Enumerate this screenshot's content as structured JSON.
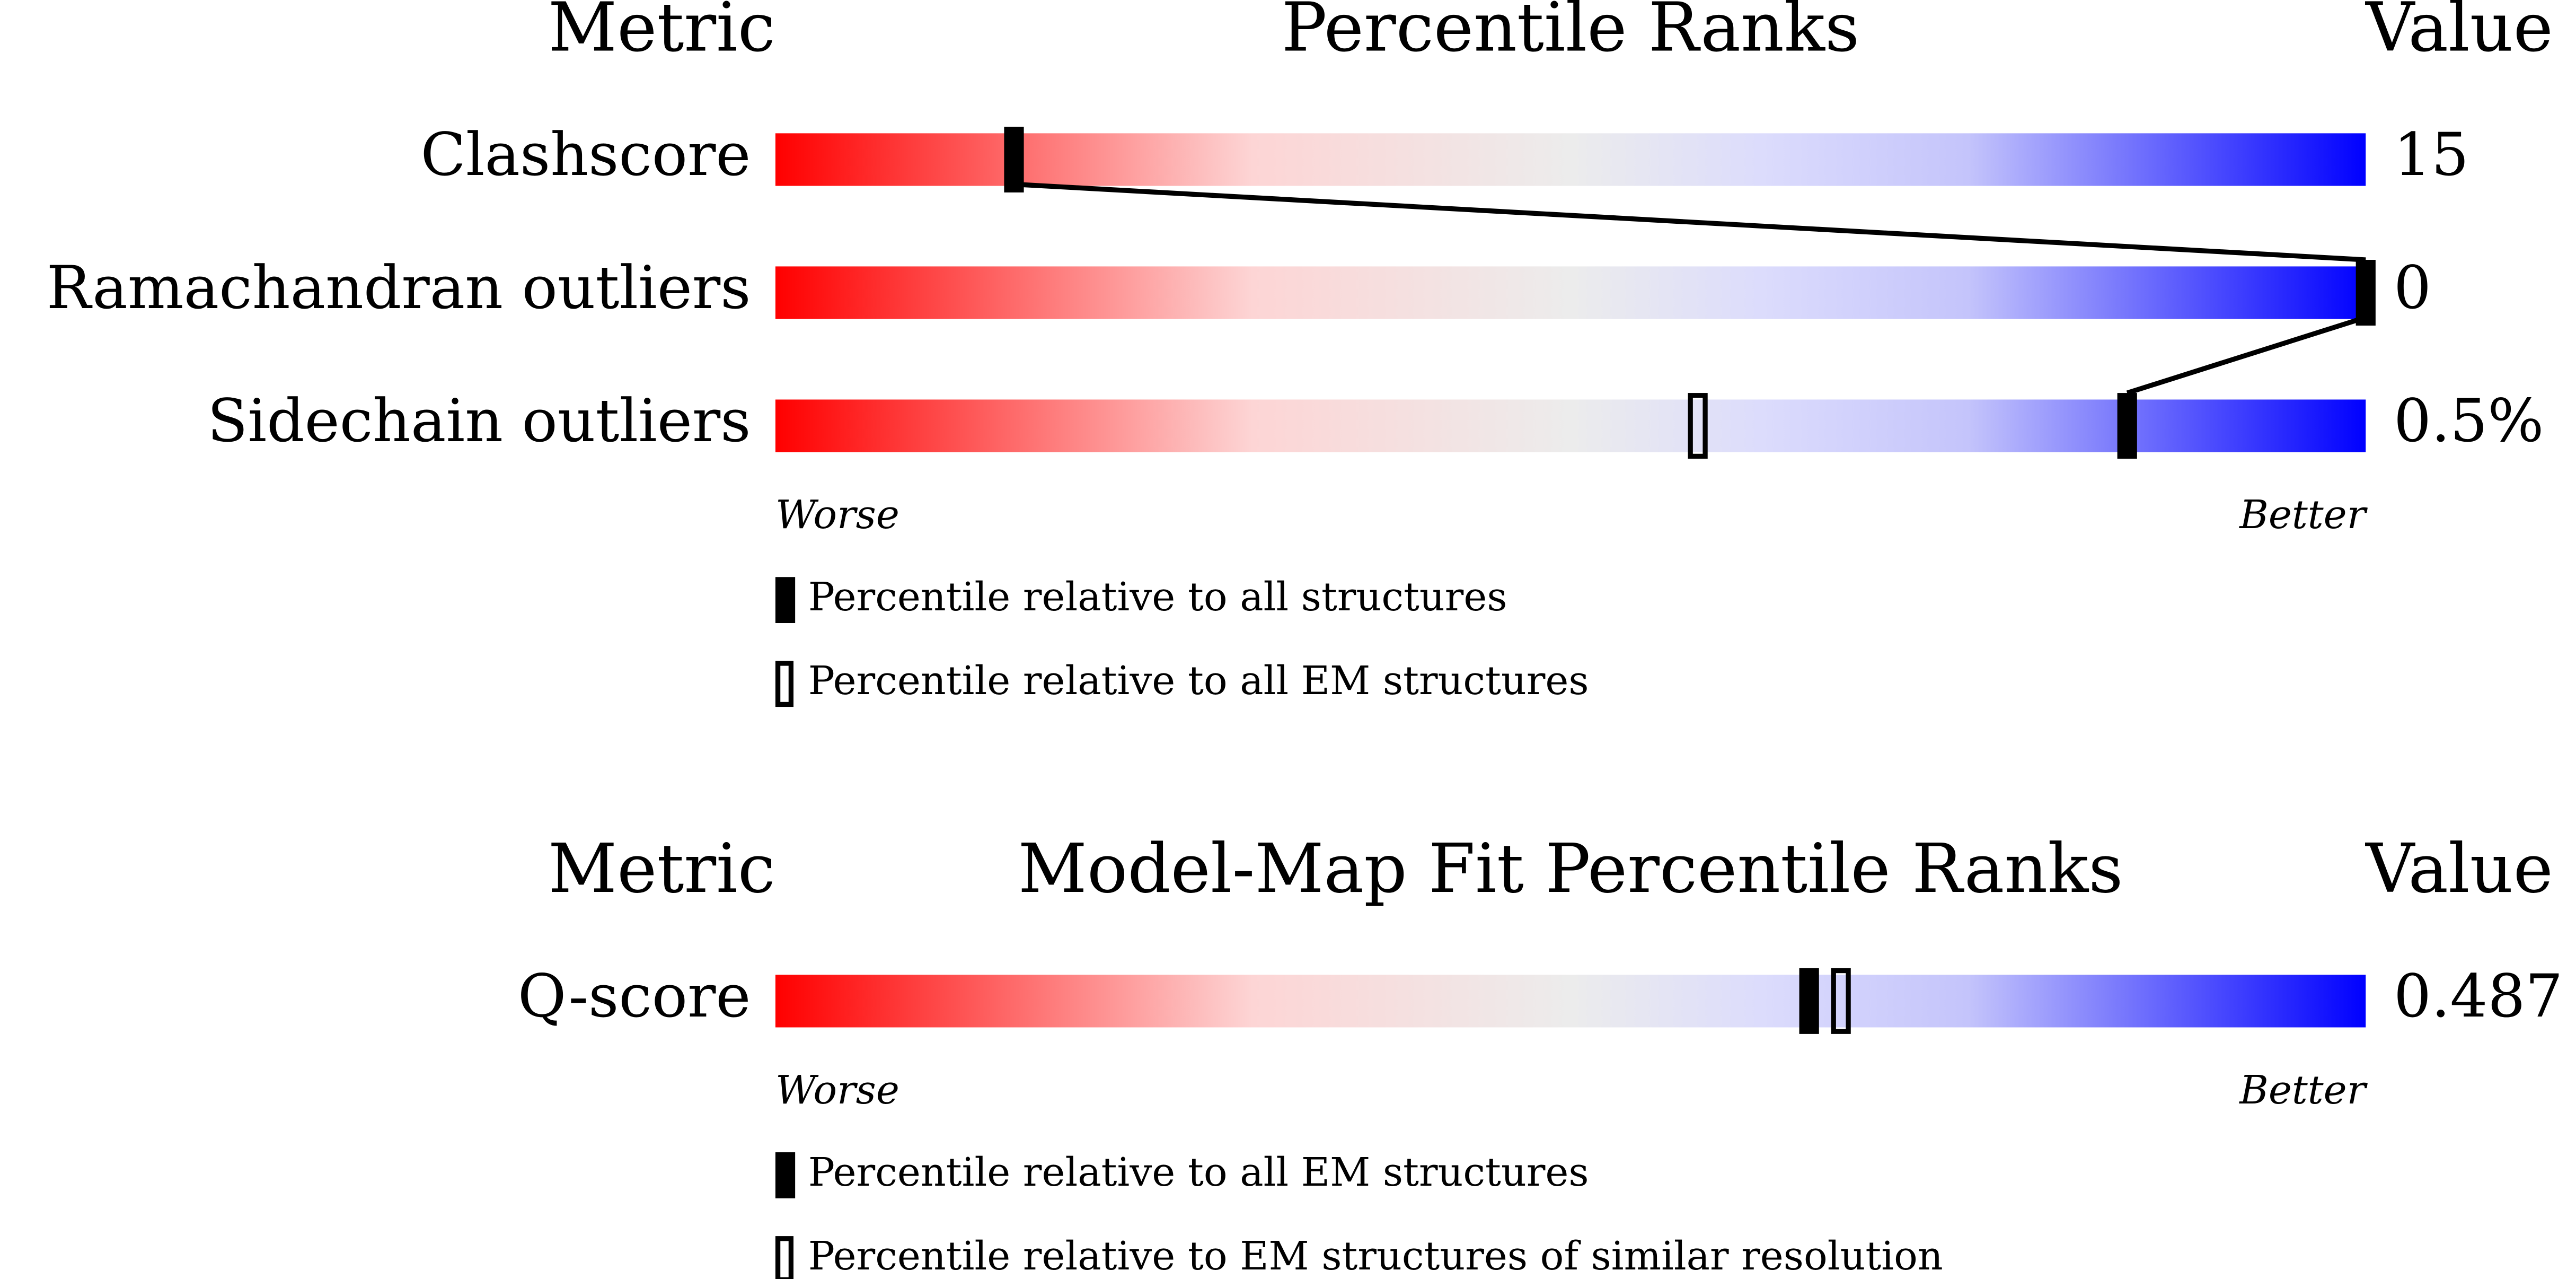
{
  "chart_data": [
    {
      "type": "percentile-slider",
      "metric_header": "Metric",
      "title": "Percentile Ranks",
      "value_header": "Value",
      "categories": [
        "Clashscore",
        "Ramachandran outliers",
        "Sidechain outliers"
      ],
      "metric_values": [
        "15",
        "0",
        "0.5%"
      ],
      "xlim": [
        0,
        100
      ],
      "series": [
        {
          "name": "Percentile relative to all structures",
          "style": "filled",
          "values": [
            15,
            100,
            85
          ]
        },
        {
          "name": "Percentile relative to all EM structures",
          "style": "outline",
          "values": [
            null,
            null,
            58
          ]
        }
      ],
      "worse_label": "Worse",
      "better_label": "Better"
    },
    {
      "type": "percentile-slider",
      "metric_header": "Metric",
      "title": "Model-Map Fit Percentile Ranks",
      "value_header": "Value",
      "categories": [
        "Q-score"
      ],
      "metric_values": [
        "0.487"
      ],
      "xlim": [
        0,
        100
      ],
      "series": [
        {
          "name": "Percentile relative to all EM structures",
          "style": "filled",
          "values": [
            65
          ]
        },
        {
          "name": "Percentile relative to EM structures of similar resolution",
          "style": "outline",
          "values": [
            67
          ]
        }
      ],
      "worse_label": "Worse",
      "better_label": "Better"
    }
  ]
}
